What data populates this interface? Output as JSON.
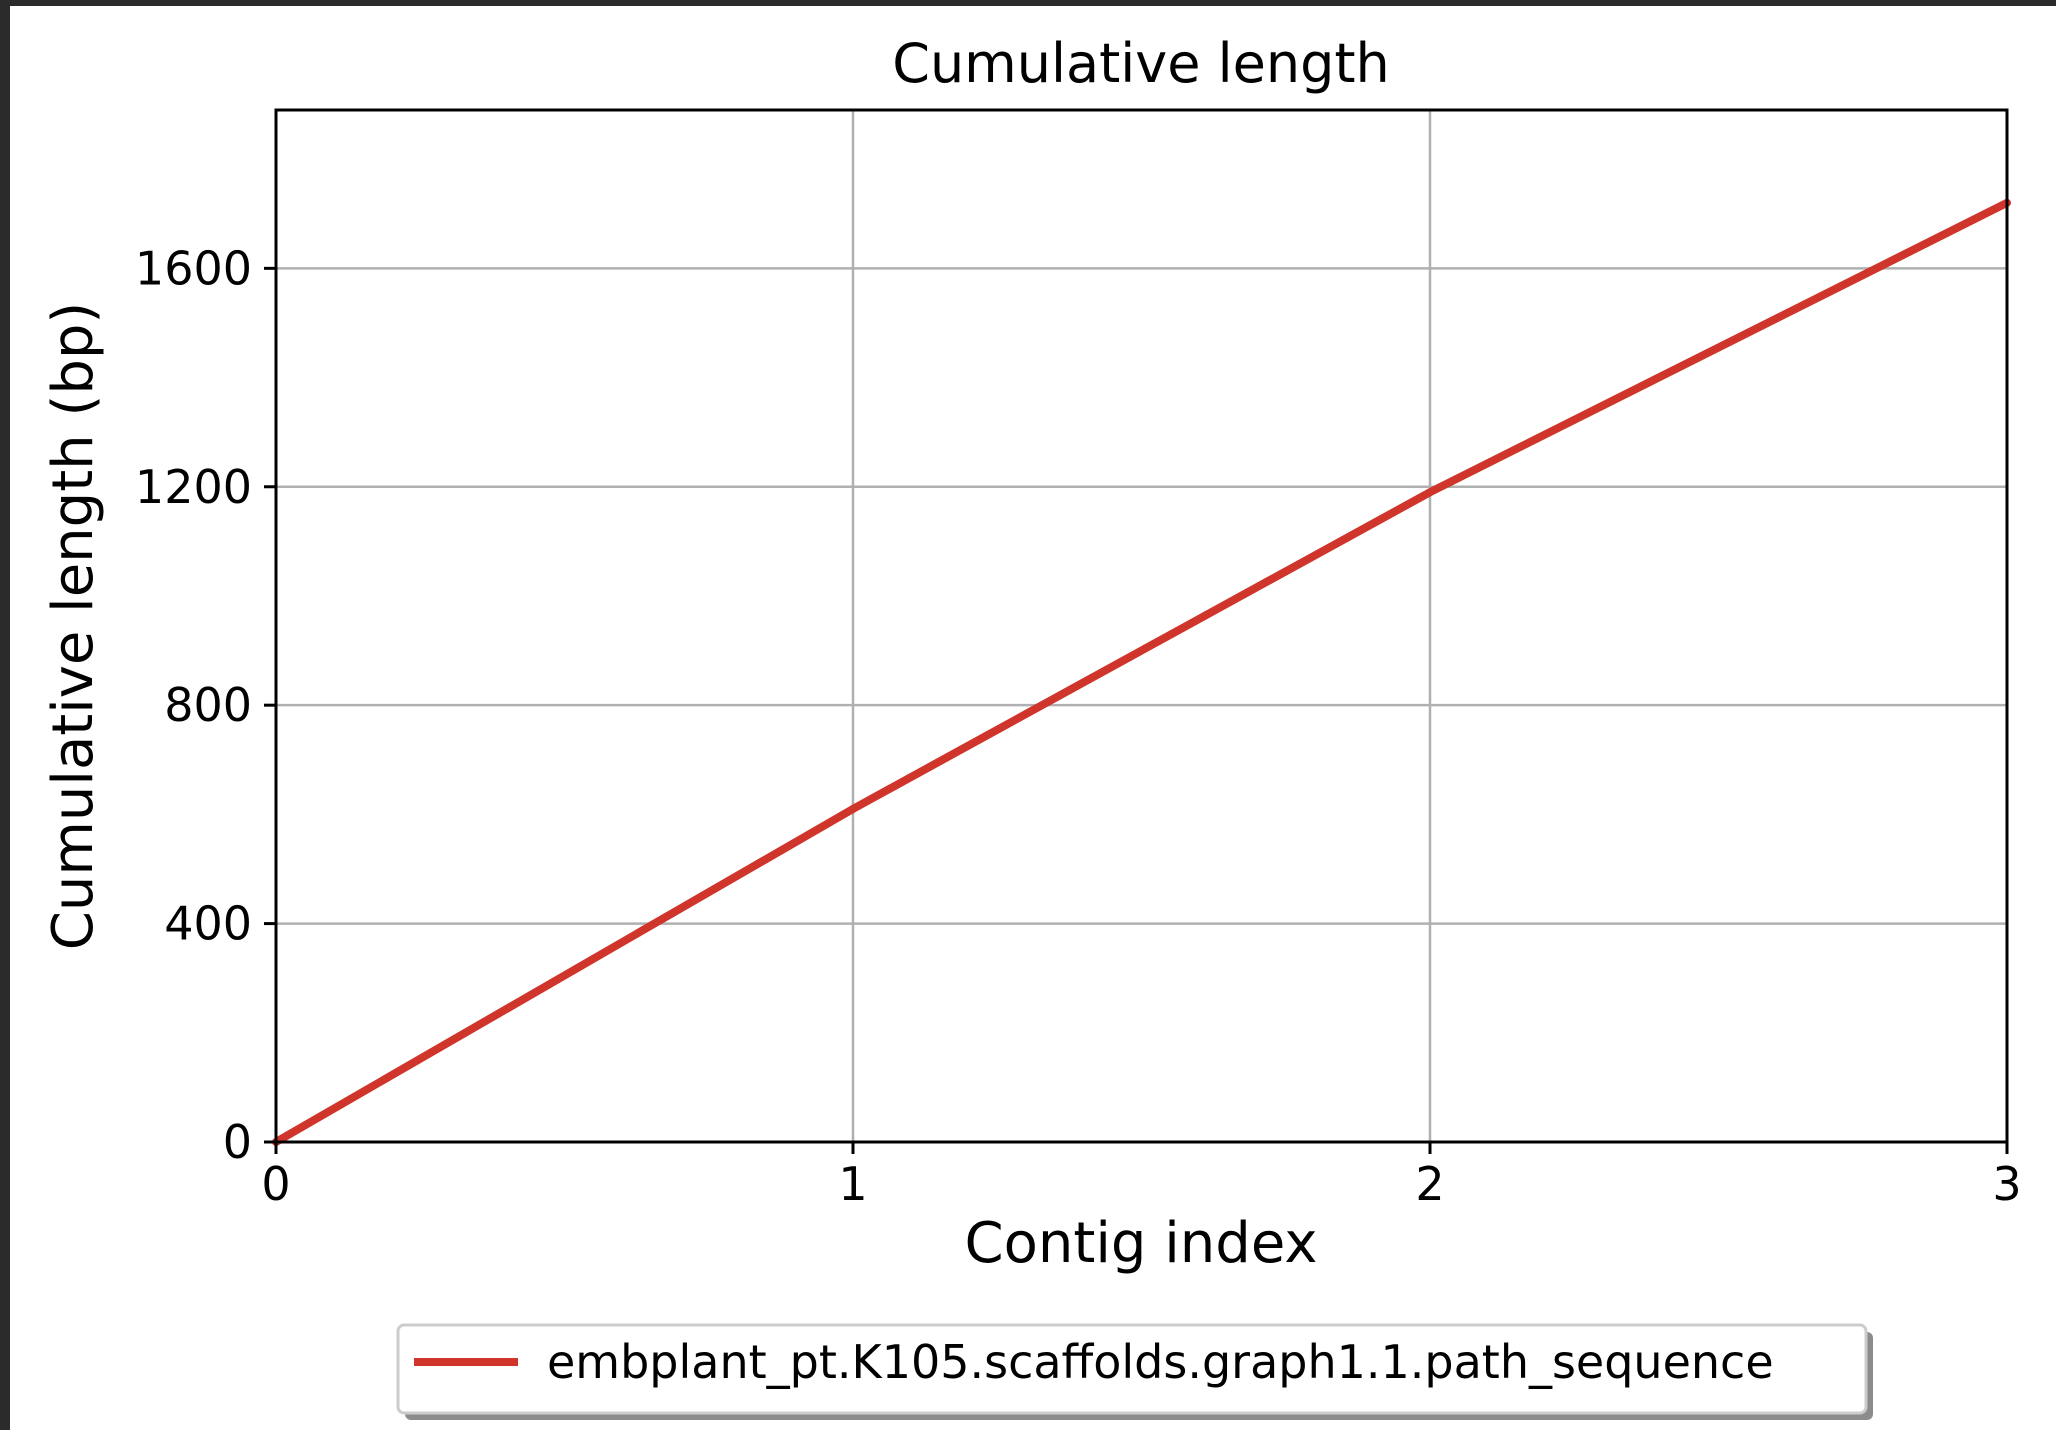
{
  "chart_data": {
    "type": "line",
    "title": "Cumulative length",
    "xlabel": "Contig index",
    "ylabel": "Cumulative length (bp)",
    "xlim": [
      0,
      3
    ],
    "ylim": [
      0,
      1890
    ],
    "xticks": [
      "0",
      "1",
      "2",
      "3"
    ],
    "yticks": [
      "0",
      "400",
      "800",
      "1200",
      "1600"
    ],
    "grid": true,
    "legend_position": "bottom-center",
    "series": [
      {
        "name": "embplant_pt.K105.scaffolds.graph1.1.path_sequence",
        "color": "#d0352b",
        "x": [
          0,
          1,
          2,
          3
        ],
        "y": [
          0,
          610,
          1190,
          1720
        ]
      }
    ]
  }
}
